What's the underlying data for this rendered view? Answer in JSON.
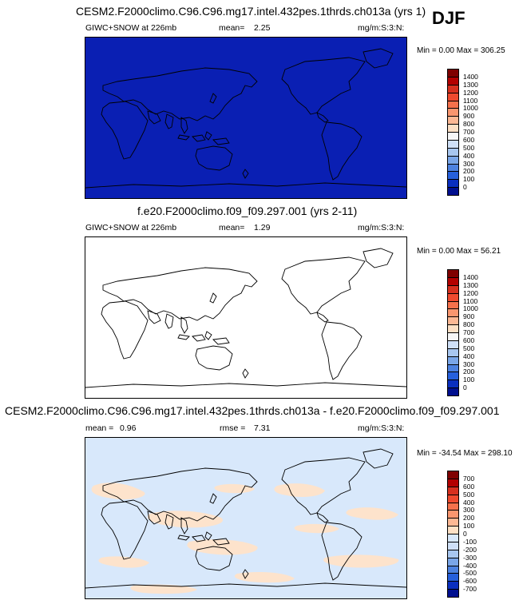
{
  "season": "DJF",
  "panels": [
    {
      "title": "CESM2.F2000climo.C96.C96.mg17.intel.432pes.1thrds.ch013a (yrs 1)",
      "field": "GIWC+SNOW at 226mb",
      "mean_label": "mean=",
      "mean_value": "2.25",
      "units": "mg/m:S:3:N:",
      "minmax": "Min =   0.00 Max = 306.25",
      "fill": "#0a1fb3"
    },
    {
      "title": "f.e20.F2000climo.f09_f09.297.001 (yrs 2-11)",
      "field": "GIWC+SNOW at 226mb",
      "mean_label": "mean=",
      "mean_value": "1.29",
      "units": "mg/m:S:3:N:",
      "minmax": "Min =   0.00 Max =  56.21",
      "fill": "#ffffff"
    },
    {
      "title": "CESM2.F2000climo.C96.C96.mg17.intel.432pes.1thrds.ch013a - f.e20.F2000climo.f09_f09.297.001",
      "mean_label": "mean =",
      "mean_value": "0.96",
      "rmse_label": "rmse =",
      "rmse_value": "7.31",
      "units": "mg/m:S:3:N:",
      "minmax": "Min = -34.54 Max = 298.10",
      "fill": "#d8e8fb",
      "patch_color": "#fde3cc"
    }
  ],
  "colorbar_abs": {
    "labels": [
      "1400",
      "1300",
      "1200",
      "1100",
      "1000",
      "900",
      "800",
      "700",
      "600",
      "500",
      "400",
      "300",
      "200",
      "100",
      "0"
    ],
    "colors": [
      "#7f0000",
      "#b30000",
      "#d7301f",
      "#ef4a2f",
      "#f5714c",
      "#f9966f",
      "#fcb894",
      "#fde0c5",
      "#f7f7f7",
      "#cfe0f7",
      "#a8c7f0",
      "#7aa6e8",
      "#4d82e0",
      "#2660dc",
      "#0a2fbf",
      "#000f8f"
    ]
  },
  "colorbar_diff": {
    "labels": [
      "700",
      "600",
      "500",
      "400",
      "300",
      "200",
      "100",
      "0",
      "-100",
      "-200",
      "-300",
      "-400",
      "-500",
      "-600",
      "-700"
    ],
    "colors": [
      "#7f0000",
      "#b30000",
      "#d7301f",
      "#ef4a2f",
      "#f5714c",
      "#f9966f",
      "#fcb894",
      "#fde0c5",
      "#d8e8fb",
      "#cfe0f7",
      "#a8c7f0",
      "#7aa6e8",
      "#4d82e0",
      "#2660dc",
      "#0a2fbf",
      "#000f8f"
    ]
  },
  "chart_data": [
    {
      "type": "heatmap",
      "title": "CESM2.F2000climo.C96.C96.mg17.intel.432pes.1thrds.ch013a (yrs 1)",
      "variable": "GIWC+SNOW at 226mb",
      "units": "mg/m:S:3:N:",
      "season": "DJF",
      "mean": 2.25,
      "min": 0.0,
      "max": 306.25,
      "levels": [
        0,
        100,
        200,
        300,
        400,
        500,
        600,
        700,
        800,
        900,
        1000,
        1100,
        1200,
        1300,
        1400
      ]
    },
    {
      "type": "heatmap",
      "title": "f.e20.F2000climo.f09_f09.297.001 (yrs 2-11)",
      "variable": "GIWC+SNOW at 226mb",
      "units": "mg/m:S:3:N:",
      "mean": 1.29,
      "min": 0.0,
      "max": 56.21,
      "levels": [
        0,
        100,
        200,
        300,
        400,
        500,
        600,
        700,
        800,
        900,
        1000,
        1100,
        1200,
        1300,
        1400
      ]
    },
    {
      "type": "heatmap",
      "title": "CESM2.F2000climo.C96.C96.mg17.intel.432pes.1thrds.ch013a - f.e20.F2000climo.f09_f09.297.001",
      "units": "mg/m:S:3:N:",
      "mean": 0.96,
      "rmse": 7.31,
      "min": -34.54,
      "max": 298.1,
      "levels": [
        -700,
        -600,
        -500,
        -400,
        -300,
        -200,
        -100,
        0,
        100,
        200,
        300,
        400,
        500,
        600,
        700
      ]
    }
  ]
}
